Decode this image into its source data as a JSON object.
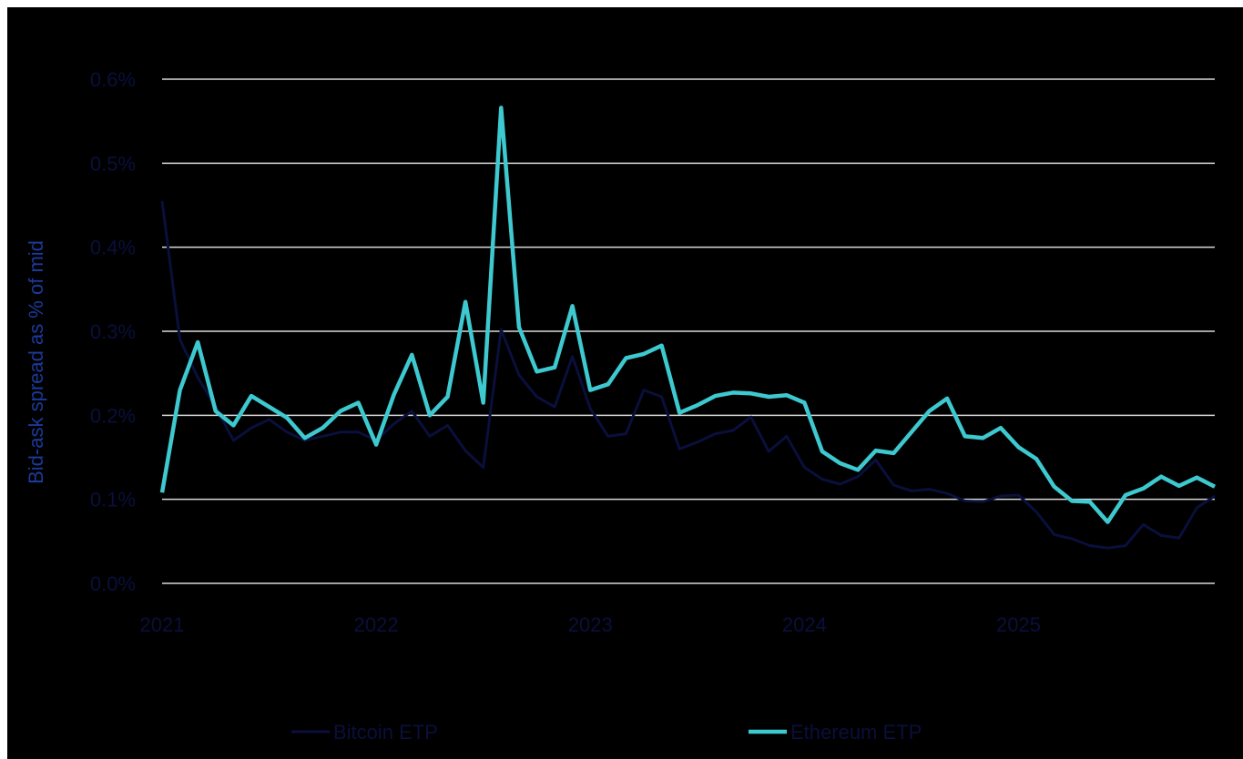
{
  "chart_data": {
    "type": "line",
    "ylabel": "Bid-ask spread as % of mid",
    "xlabel": "",
    "ylim": [
      0,
      0.6
    ],
    "y_ticks": [
      "0.0%",
      "0.1%",
      "0.2%",
      "0.3%",
      "0.4%",
      "0.5%",
      "0.6%"
    ],
    "x_ticks": [
      "2021",
      "2022",
      "2023",
      "2024",
      "2025"
    ],
    "x_range": [
      "2021-01",
      "2025-12"
    ],
    "grid": true,
    "legend_position": "bottom",
    "x": [
      "2021-01",
      "2021-02",
      "2021-03",
      "2021-04",
      "2021-05",
      "2021-06",
      "2021-07",
      "2021-08",
      "2021-09",
      "2021-10",
      "2021-11",
      "2021-12",
      "2022-01",
      "2022-02",
      "2022-03",
      "2022-04",
      "2022-05",
      "2022-06",
      "2022-07",
      "2022-08",
      "2022-09",
      "2022-10",
      "2022-11",
      "2022-12",
      "2023-01",
      "2023-02",
      "2023-03",
      "2023-04",
      "2023-05",
      "2023-06",
      "2023-07",
      "2023-08",
      "2023-09",
      "2023-10",
      "2023-11",
      "2023-12",
      "2024-01",
      "2024-02",
      "2024-03",
      "2024-04",
      "2024-05",
      "2024-06",
      "2024-07",
      "2024-08",
      "2024-09",
      "2024-10",
      "2024-11",
      "2024-12",
      "2025-01",
      "2025-02",
      "2025-03",
      "2025-04",
      "2025-05",
      "2025-06",
      "2025-07",
      "2025-08",
      "2025-09",
      "2025-10",
      "2025-11",
      "2025-12"
    ],
    "series": [
      {
        "name": "Bitcoin ETP",
        "color": "#0a0f3c",
        "values": [
          0.455,
          0.29,
          0.245,
          0.21,
          0.17,
          0.185,
          0.195,
          0.18,
          0.17,
          0.175,
          0.18,
          0.18,
          0.17,
          0.19,
          0.205,
          0.175,
          0.188,
          0.158,
          0.138,
          0.302,
          0.248,
          0.222,
          0.21,
          0.27,
          0.208,
          0.175,
          0.178,
          0.23,
          0.222,
          0.16,
          0.168,
          0.178,
          0.182,
          0.198,
          0.157,
          0.175,
          0.138,
          0.124,
          0.118,
          0.127,
          0.147,
          0.117,
          0.11,
          0.112,
          0.107,
          0.098,
          0.097,
          0.104,
          0.105,
          0.085,
          0.058,
          0.053,
          0.045,
          0.042,
          0.045,
          0.07,
          0.057,
          0.054,
          0.09,
          0.104
        ]
      },
      {
        "name": "Ethereum ETP",
        "color": "#3dc9cf",
        "values": [
          0.108,
          0.23,
          0.287,
          0.205,
          0.188,
          0.223,
          0.21,
          0.197,
          0.173,
          0.185,
          0.205,
          0.215,
          0.165,
          0.225,
          0.272,
          0.2,
          0.222,
          0.335,
          0.215,
          0.566,
          0.305,
          0.252,
          0.257,
          0.33,
          0.23,
          0.237,
          0.268,
          0.273,
          0.283,
          0.203,
          0.212,
          0.223,
          0.227,
          0.226,
          0.222,
          0.224,
          0.215,
          0.157,
          0.143,
          0.135,
          0.158,
          0.155,
          0.18,
          0.205,
          0.22,
          0.175,
          0.173,
          0.185,
          0.162,
          0.148,
          0.115,
          0.098,
          0.097,
          0.073,
          0.105,
          0.113,
          0.127,
          0.116,
          0.126,
          0.115
        ]
      }
    ]
  }
}
